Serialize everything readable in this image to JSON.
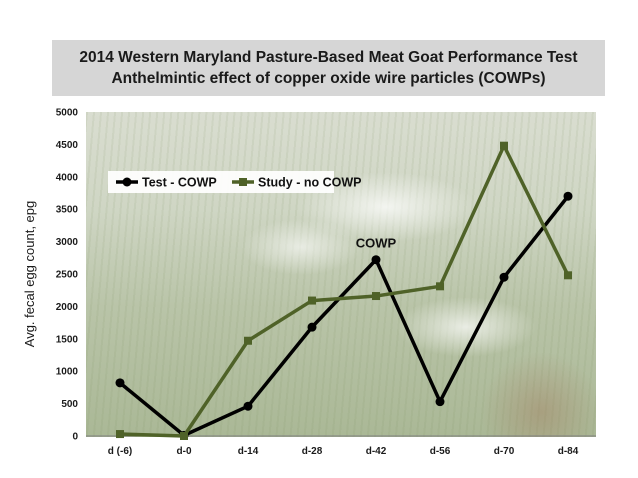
{
  "chart_data": {
    "type": "line",
    "title": "2014 Western Maryland Pasture-Based Meat Goat Performance Test",
    "subtitle": "Anthelmintic effect of copper oxide wire particles (COWPs)",
    "xlabel": "",
    "ylabel": "Avg. fecal egg count, epg",
    "categories": [
      "d (-6)",
      "d-0",
      "d-14",
      "d-28",
      "d-42",
      "d-56",
      "d-70",
      "d-84"
    ],
    "ylim": [
      0,
      5000
    ],
    "yticks": [
      0,
      500,
      1000,
      1500,
      2000,
      2500,
      3000,
      3500,
      4000,
      4500,
      5000
    ],
    "grid": false,
    "legend_position": "top-left",
    "series": [
      {
        "name": "Test - COWP",
        "color": "#000000",
        "marker": "circle",
        "values": [
          820,
          10,
          460,
          1680,
          2720,
          530,
          2450,
          3700
        ]
      },
      {
        "name": "Study - no COWP",
        "color": "#4f6228",
        "marker": "square",
        "values": [
          30,
          0,
          1470,
          2090,
          2160,
          2310,
          4480,
          2480
        ]
      }
    ],
    "annotations": [
      {
        "text": "COWP",
        "x": "d-42",
        "y": 2720
      }
    ]
  }
}
